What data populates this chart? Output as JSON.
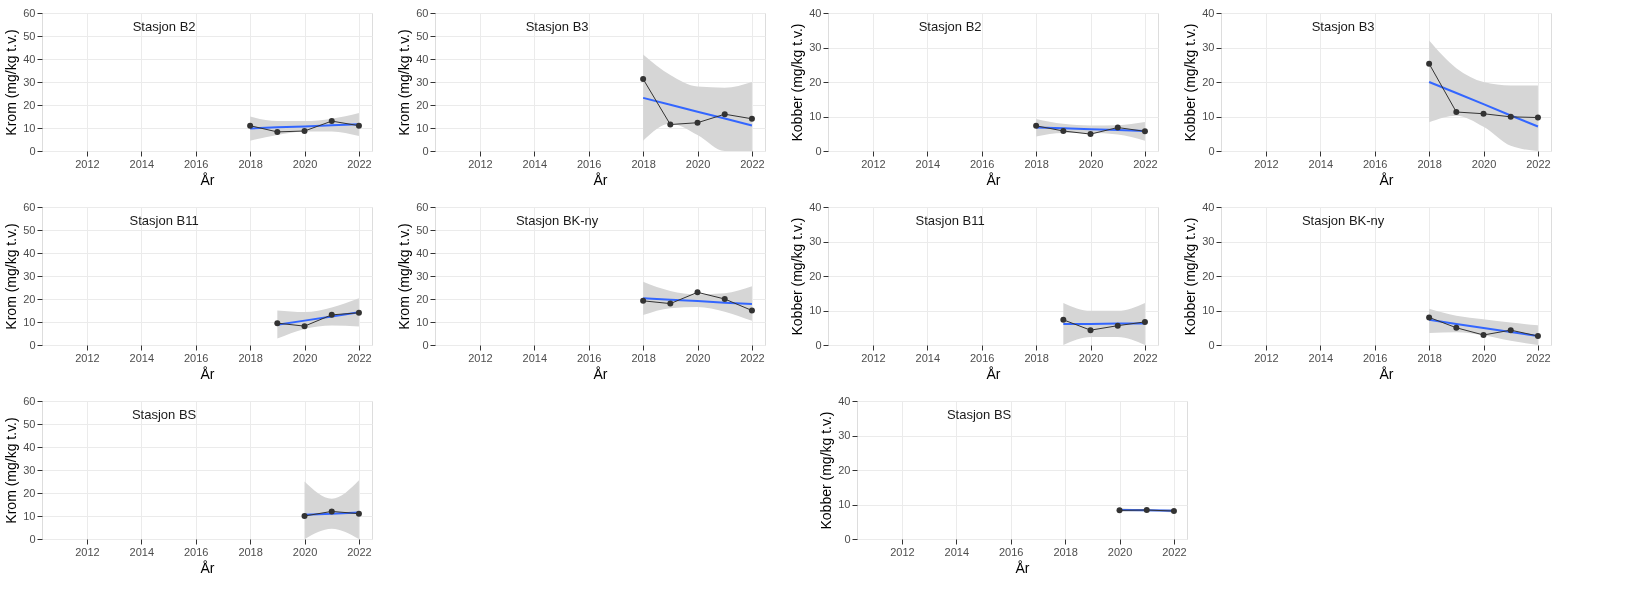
{
  "chart_data": [
    {
      "type": "line",
      "title": "Stasjon B2",
      "xlabel": "År",
      "ylabel": "Krom (mg/kg t.v.)",
      "xlim": [
        2010.35,
        2022.48
      ],
      "xticks": [
        2012,
        2014,
        2016,
        2018,
        2020,
        2022
      ],
      "ylim": [
        0,
        60
      ],
      "yticks": [
        0,
        10,
        20,
        30,
        40,
        50,
        60
      ],
      "grid": true,
      "series": [
        {
          "color": "#333333",
          "marker": "circle",
          "x": [
            2018,
            2019,
            2020,
            2021,
            2022
          ],
          "values": [
            11,
            8.3,
            8.7,
            13,
            11
          ]
        },
        {
          "color": "#3366ff",
          "marker": "none",
          "x": [
            2018,
            2019,
            2020,
            2021,
            2022
          ],
          "values": [
            9.8,
            10.3,
            10.7,
            11.2,
            11.6
          ],
          "lower": [
            4.5,
            7,
            8.5,
            8.5,
            6.5
          ],
          "upper": [
            15,
            13,
            13,
            14,
            16.5
          ]
        }
      ]
    },
    {
      "type": "line",
      "title": "Stasjon B3",
      "xlabel": "År",
      "ylabel": "Krom (mg/kg t.v.)",
      "xlim": [
        2010.35,
        2022.48
      ],
      "xticks": [
        2012,
        2014,
        2016,
        2018,
        2020,
        2022
      ],
      "ylim": [
        0,
        60
      ],
      "yticks": [
        0,
        10,
        20,
        30,
        40,
        50,
        60
      ],
      "grid": true,
      "series": [
        {
          "color": "#333333",
          "marker": "circle",
          "x": [
            2018,
            2019,
            2020,
            2021,
            2022
          ],
          "values": [
            31.3,
            11.5,
            12.3,
            16,
            14
          ]
        },
        {
          "color": "#3366ff",
          "marker": "none",
          "x": [
            2018,
            2019,
            2020,
            2021,
            2022
          ],
          "values": [
            23.1,
            20.1,
            17.1,
            14.1,
            11.1
          ],
          "lower": [
            4.5,
            12,
            7,
            0,
            0
          ],
          "upper": [
            42,
            33,
            28,
            27.5,
            30
          ]
        }
      ]
    },
    {
      "type": "line",
      "title": "Stasjon B2",
      "xlabel": "År",
      "ylabel": "Kobber (mg/kg t.v.)",
      "xlim": [
        2010.35,
        2022.48
      ],
      "xticks": [
        2012,
        2014,
        2016,
        2018,
        2020,
        2022
      ],
      "ylim": [
        0,
        40
      ],
      "yticks": [
        0,
        10,
        20,
        30,
        40
      ],
      "grid": true,
      "series": [
        {
          "color": "#333333",
          "marker": "circle",
          "x": [
            2018,
            2019,
            2020,
            2021,
            2022
          ],
          "values": [
            7.3,
            5.8,
            4.9,
            6.8,
            5.7
          ]
        },
        {
          "color": "#3366ff",
          "marker": "none",
          "x": [
            2018,
            2019,
            2020,
            2021,
            2022
          ],
          "values": [
            6.8,
            6.6,
            6.3,
            6.1,
            5.8
          ],
          "lower": [
            4.2,
            5.2,
            5.2,
            4.8,
            3
          ],
          "upper": [
            9.3,
            7.9,
            7.4,
            7.5,
            8.4
          ]
        }
      ]
    },
    {
      "type": "line",
      "title": "Stasjon B3",
      "xlabel": "År",
      "ylabel": "Kobber (mg/kg t.v.)",
      "xlim": [
        2010.35,
        2022.48
      ],
      "xticks": [
        2012,
        2014,
        2016,
        2018,
        2020,
        2022
      ],
      "ylim": [
        0,
        40
      ],
      "yticks": [
        0,
        10,
        20,
        30,
        40
      ],
      "grid": true,
      "series": [
        {
          "color": "#333333",
          "marker": "circle",
          "x": [
            2018,
            2019,
            2020,
            2021,
            2022
          ],
          "values": [
            25.3,
            11.3,
            10.8,
            9.9,
            9.7
          ]
        },
        {
          "color": "#3366ff",
          "marker": "none",
          "x": [
            2018,
            2019,
            2020,
            2021,
            2022
          ],
          "values": [
            20,
            16.8,
            13.6,
            10.3,
            7.1
          ],
          "lower": [
            8.3,
            10.2,
            7,
            1.5,
            0
          ],
          "upper": [
            32,
            24,
            20,
            19,
            19
          ]
        }
      ]
    },
    {
      "type": "line",
      "title": "Stasjon B11",
      "xlabel": "År",
      "ylabel": "Krom (mg/kg t.v.)",
      "xlim": [
        2010.35,
        2022.48
      ],
      "xticks": [
        2012,
        2014,
        2016,
        2018,
        2020,
        2022
      ],
      "ylim": [
        0,
        60
      ],
      "yticks": [
        0,
        10,
        20,
        30,
        40,
        50,
        60
      ],
      "grid": true,
      "series": [
        {
          "color": "#333333",
          "marker": "circle",
          "x": [
            2019,
            2020,
            2021,
            2022
          ],
          "values": [
            9.5,
            8.2,
            13.1,
            14
          ]
        },
        {
          "color": "#3366ff",
          "marker": "none",
          "x": [
            2019,
            2020,
            2021,
            2022
          ],
          "values": [
            8.8,
            10.6,
            12.4,
            14.2
          ],
          "lower": [
            2.8,
            7,
            8.5,
            8
          ],
          "upper": [
            15,
            14.3,
            16.3,
            20.3
          ]
        }
      ]
    },
    {
      "type": "line",
      "title": "Stasjon BK-ny",
      "xlabel": "År",
      "ylabel": "Krom (mg/kg t.v.)",
      "xlim": [
        2010.35,
        2022.48
      ],
      "xticks": [
        2012,
        2014,
        2016,
        2018,
        2020,
        2022
      ],
      "ylim": [
        0,
        60
      ],
      "yticks": [
        0,
        10,
        20,
        30,
        40,
        50,
        60
      ],
      "grid": true,
      "series": [
        {
          "color": "#333333",
          "marker": "circle",
          "x": [
            2018,
            2019,
            2020,
            2021,
            2022
          ],
          "values": [
            19.2,
            18,
            22.9,
            20,
            15
          ]
        },
        {
          "color": "#3366ff",
          "marker": "none",
          "x": [
            2018,
            2019,
            2020,
            2021,
            2022
          ],
          "values": [
            20.3,
            19.7,
            19.1,
            18.4,
            17.8
          ],
          "lower": [
            13,
            16,
            16.5,
            14.5,
            10.5
          ],
          "upper": [
            27.5,
            23.5,
            22,
            22.5,
            25.5
          ]
        }
      ]
    },
    {
      "type": "line",
      "title": "Stasjon B11",
      "xlabel": "År",
      "ylabel": "Kobber (mg/kg t.v.)",
      "xlim": [
        2010.35,
        2022.48
      ],
      "xticks": [
        2012,
        2014,
        2016,
        2018,
        2020,
        2022
      ],
      "ylim": [
        0,
        40
      ],
      "yticks": [
        0,
        10,
        20,
        30,
        40
      ],
      "grid": true,
      "series": [
        {
          "color": "#333333",
          "marker": "circle",
          "x": [
            2019,
            2020,
            2021,
            2022
          ],
          "values": [
            7.3,
            4.3,
            5.6,
            6.7
          ]
        },
        {
          "color": "#3366ff",
          "marker": "none",
          "x": [
            2019,
            2020,
            2021,
            2022
          ],
          "values": [
            6.1,
            6.1,
            6.2,
            6.2
          ],
          "lower": [
            0,
            2.3,
            2.3,
            0
          ],
          "upper": [
            12.2,
            9.9,
            9.9,
            12.2
          ]
        }
      ]
    },
    {
      "type": "line",
      "title": "Stasjon BK-ny",
      "xlabel": "År",
      "ylabel": "Kobber (mg/kg t.v.)",
      "xlim": [
        2010.35,
        2022.48
      ],
      "xticks": [
        2012,
        2014,
        2016,
        2018,
        2020,
        2022
      ],
      "ylim": [
        0,
        40
      ],
      "yticks": [
        0,
        10,
        20,
        30,
        40
      ],
      "grid": true,
      "series": [
        {
          "color": "#333333",
          "marker": "circle",
          "x": [
            2018,
            2019,
            2020,
            2021,
            2022
          ],
          "values": [
            8,
            5,
            2.9,
            4.3,
            2.6
          ]
        },
        {
          "color": "#3366ff",
          "marker": "none",
          "x": [
            2018,
            2019,
            2020,
            2021,
            2022
          ],
          "values": [
            7.3,
            6.1,
            4.9,
            3.8,
            2.6
          ],
          "lower": [
            3.5,
            3.7,
            2.8,
            1.2,
            0
          ],
          "upper": [
            10.5,
            8.5,
            7.5,
            6.5,
            5.7
          ]
        }
      ]
    },
    {
      "type": "line",
      "title": "Stasjon BS",
      "xlabel": "År",
      "ylabel": "Krom (mg/kg t.v.)",
      "xlim": [
        2010.35,
        2022.48
      ],
      "xticks": [
        2012,
        2014,
        2016,
        2018,
        2020,
        2022
      ],
      "ylim": [
        0,
        60
      ],
      "yticks": [
        0,
        10,
        20,
        30,
        40,
        50,
        60
      ],
      "grid": true,
      "series": [
        {
          "color": "#333333",
          "marker": "circle",
          "x": [
            2020,
            2021,
            2022
          ],
          "values": [
            10,
            12,
            11
          ]
        },
        {
          "color": "#3366ff",
          "marker": "none",
          "x": [
            2020,
            2021,
            2022
          ],
          "values": [
            10.5,
            11,
            11.5
          ],
          "lower": [
            0,
            4.5,
            0
          ],
          "upper": [
            25,
            17.5,
            25.5
          ]
        }
      ]
    },
    {
      "type": "line",
      "title": "Stasjon BS",
      "xlabel": "År",
      "ylabel": "Kobber (mg/kg t.v.)",
      "xlim": [
        2010.35,
        2022.48
      ],
      "xticks": [
        2012,
        2014,
        2016,
        2018,
        2020,
        2022
      ],
      "ylim": [
        0,
        40
      ],
      "yticks": [
        0,
        10,
        20,
        30,
        40
      ],
      "grid": true,
      "series": [
        {
          "color": "#333333",
          "marker": "circle",
          "x": [
            2020,
            2021,
            2022
          ],
          "values": [
            8.3,
            8.4,
            8.1
          ]
        },
        {
          "color": "#3366ff",
          "marker": "none",
          "x": [
            2020,
            2021,
            2022
          ],
          "values": [
            8.4,
            8.3,
            8.2
          ],
          "lower": [
            7.9,
            8,
            7.7
          ],
          "upper": [
            8.9,
            8.6,
            8.7
          ]
        }
      ]
    }
  ]
}
